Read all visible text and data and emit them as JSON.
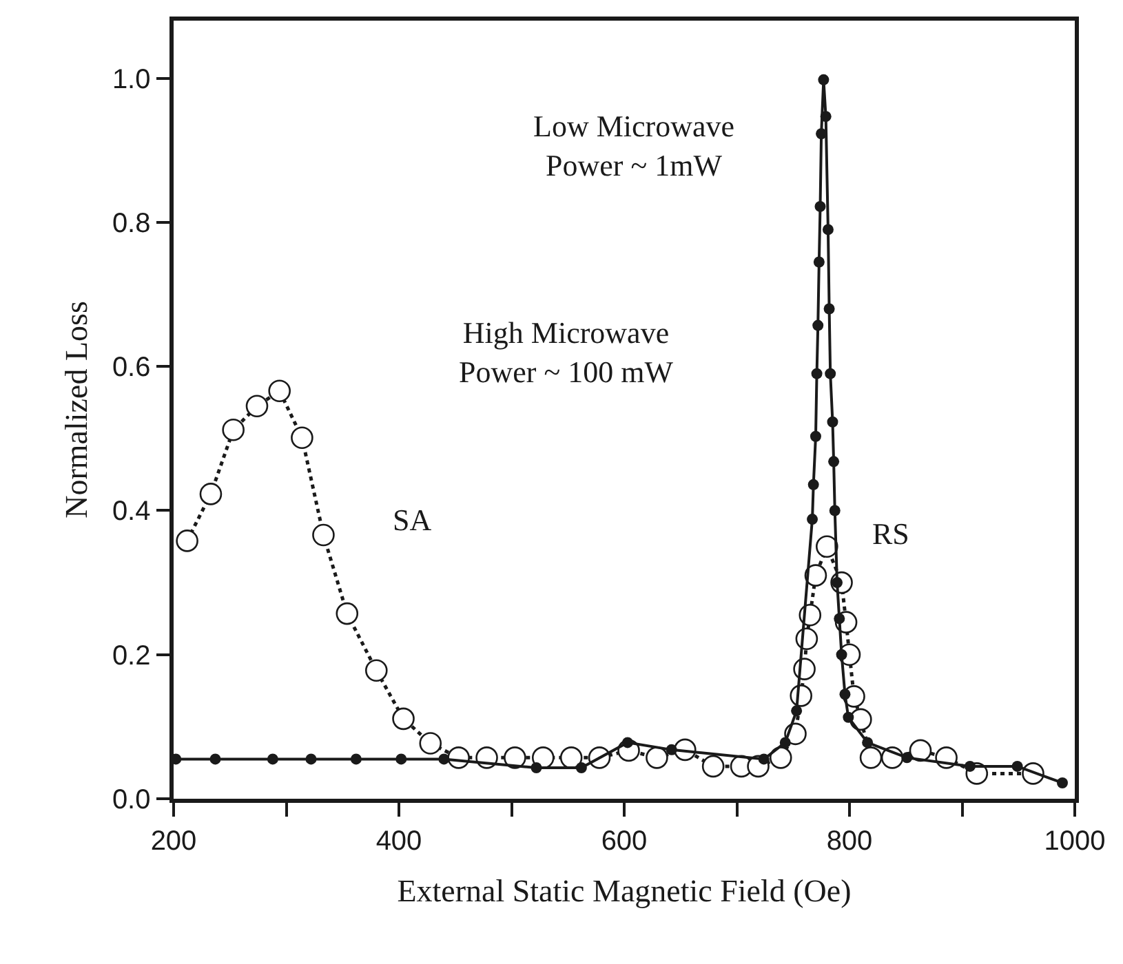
{
  "chart_data": {
    "type": "line",
    "xlabel": "External Static Magnetic Field (Oe)",
    "ylabel": "Normalized Loss",
    "xlim": [
      200,
      1000
    ],
    "ylim": [
      0,
      1.08
    ],
    "xticks": [
      200,
      {
        "value": 300,
        "label": null
      },
      400,
      {
        "value": 500,
        "label": null
      },
      600,
      {
        "value": 700,
        "label": null
      },
      800,
      {
        "value": 900,
        "label": null
      },
      1000
    ],
    "yticks": [
      {
        "value": 0,
        "label": "0.0"
      },
      0.2,
      0.4,
      0.6,
      0.8,
      {
        "value": 1,
        "label": "1.0"
      }
    ],
    "marker": "circle",
    "series": [
      {
        "color": "#1a1a1a",
        "line_style": "dotted",
        "x": [
          212,
          233,
          253,
          274,
          294,
          314,
          333,
          354,
          380,
          404,
          428,
          453,
          478,
          503,
          528,
          553,
          578,
          604,
          629,
          654,
          679,
          704,
          719,
          739,
          752,
          757,
          760,
          762,
          765,
          770,
          780,
          793,
          797,
          800,
          804,
          810,
          819,
          838,
          863,
          886,
          913,
          963
        ],
        "values": [
          0.358,
          0.423,
          0.512,
          0.545,
          0.566,
          0.501,
          0.366,
          0.257,
          0.178,
          0.111,
          0.077,
          0.057,
          0.057,
          0.057,
          0.057,
          0.057,
          0.057,
          0.067,
          0.057,
          0.068,
          0.045,
          0.045,
          0.045,
          0.057,
          0.09,
          0.143,
          0.18,
          0.222,
          0.255,
          0.31,
          0.35,
          0.3,
          0.245,
          0.2,
          0.142,
          0.11,
          0.057,
          0.057,
          0.067,
          0.057,
          0.035,
          0.035
        ]
      },
      {
        "color": "#1a1a1a",
        "line_style": "solid",
        "x": [
          202,
          237,
          288,
          322,
          362,
          402,
          440,
          522,
          562,
          603,
          642,
          724,
          743,
          753,
          767,
          768,
          770,
          771,
          772,
          773,
          774,
          775,
          777,
          779,
          781,
          782,
          783,
          785,
          786,
          787,
          789,
          791,
          793,
          796,
          799,
          816,
          851,
          907,
          949,
          989
        ],
        "values": [
          0.055,
          0.055,
          0.055,
          0.055,
          0.055,
          0.055,
          0.055,
          0.043,
          0.043,
          0.078,
          0.068,
          0.055,
          0.078,
          0.122,
          0.388,
          0.436,
          0.503,
          0.59,
          0.657,
          0.745,
          0.822,
          0.923,
          0.998,
          0.947,
          0.79,
          0.68,
          0.59,
          0.523,
          0.468,
          0.4,
          0.3,
          0.25,
          0.2,
          0.145,
          0.113,
          0.078,
          0.057,
          0.045,
          0.045,
          0.022
        ]
      }
    ],
    "annotations": [
      "Low Microwave\nPower ~ 1mW",
      "High Microwave\nPower ~ 100 mW",
      "SA",
      "RS"
    ]
  }
}
